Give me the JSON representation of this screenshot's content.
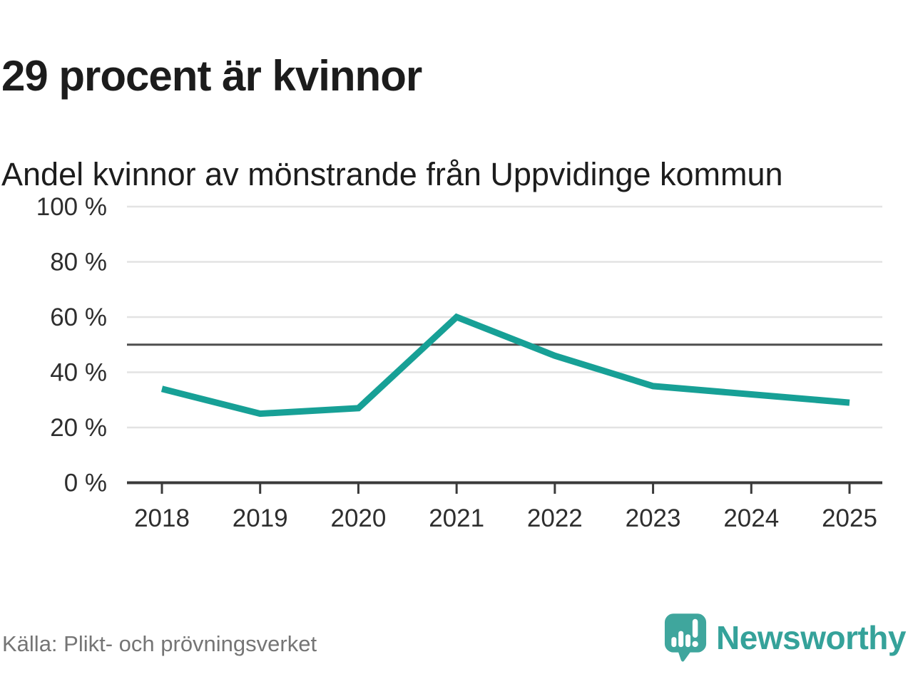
{
  "header": {
    "title": "29 procent är kvinnor",
    "subtitle": "Andel kvinnor av mönstrande från Uppvidinge kommun"
  },
  "chart_data": {
    "type": "line",
    "x": [
      "2018",
      "2019",
      "2020",
      "2021",
      "2022",
      "2023",
      "2024",
      "2025"
    ],
    "series": [
      {
        "name": "Andel kvinnor av mönstrande",
        "values": [
          34,
          25,
          27,
          60,
          46,
          35,
          32,
          29
        ]
      }
    ],
    "unit": "%",
    "ylim": [
      0,
      100
    ],
    "yticks": [
      0,
      20,
      40,
      60,
      80,
      100
    ],
    "ytick_suffix": " %",
    "reference_line": 50,
    "grid": "horizontal",
    "legend": "none",
    "colors": {
      "line": "#17a096",
      "gridline": "#e3e3e3",
      "reference_line": "#4f4f4f",
      "axis": "#3a3a3a",
      "tick_label": "#2e2e2e"
    }
  },
  "footer": {
    "source": "Källa: Plikt- och prövningsverket",
    "brand": "Newsworthy",
    "brand_bubble_color": "#3fa69d",
    "brand_text_color": "#35a29a"
  }
}
